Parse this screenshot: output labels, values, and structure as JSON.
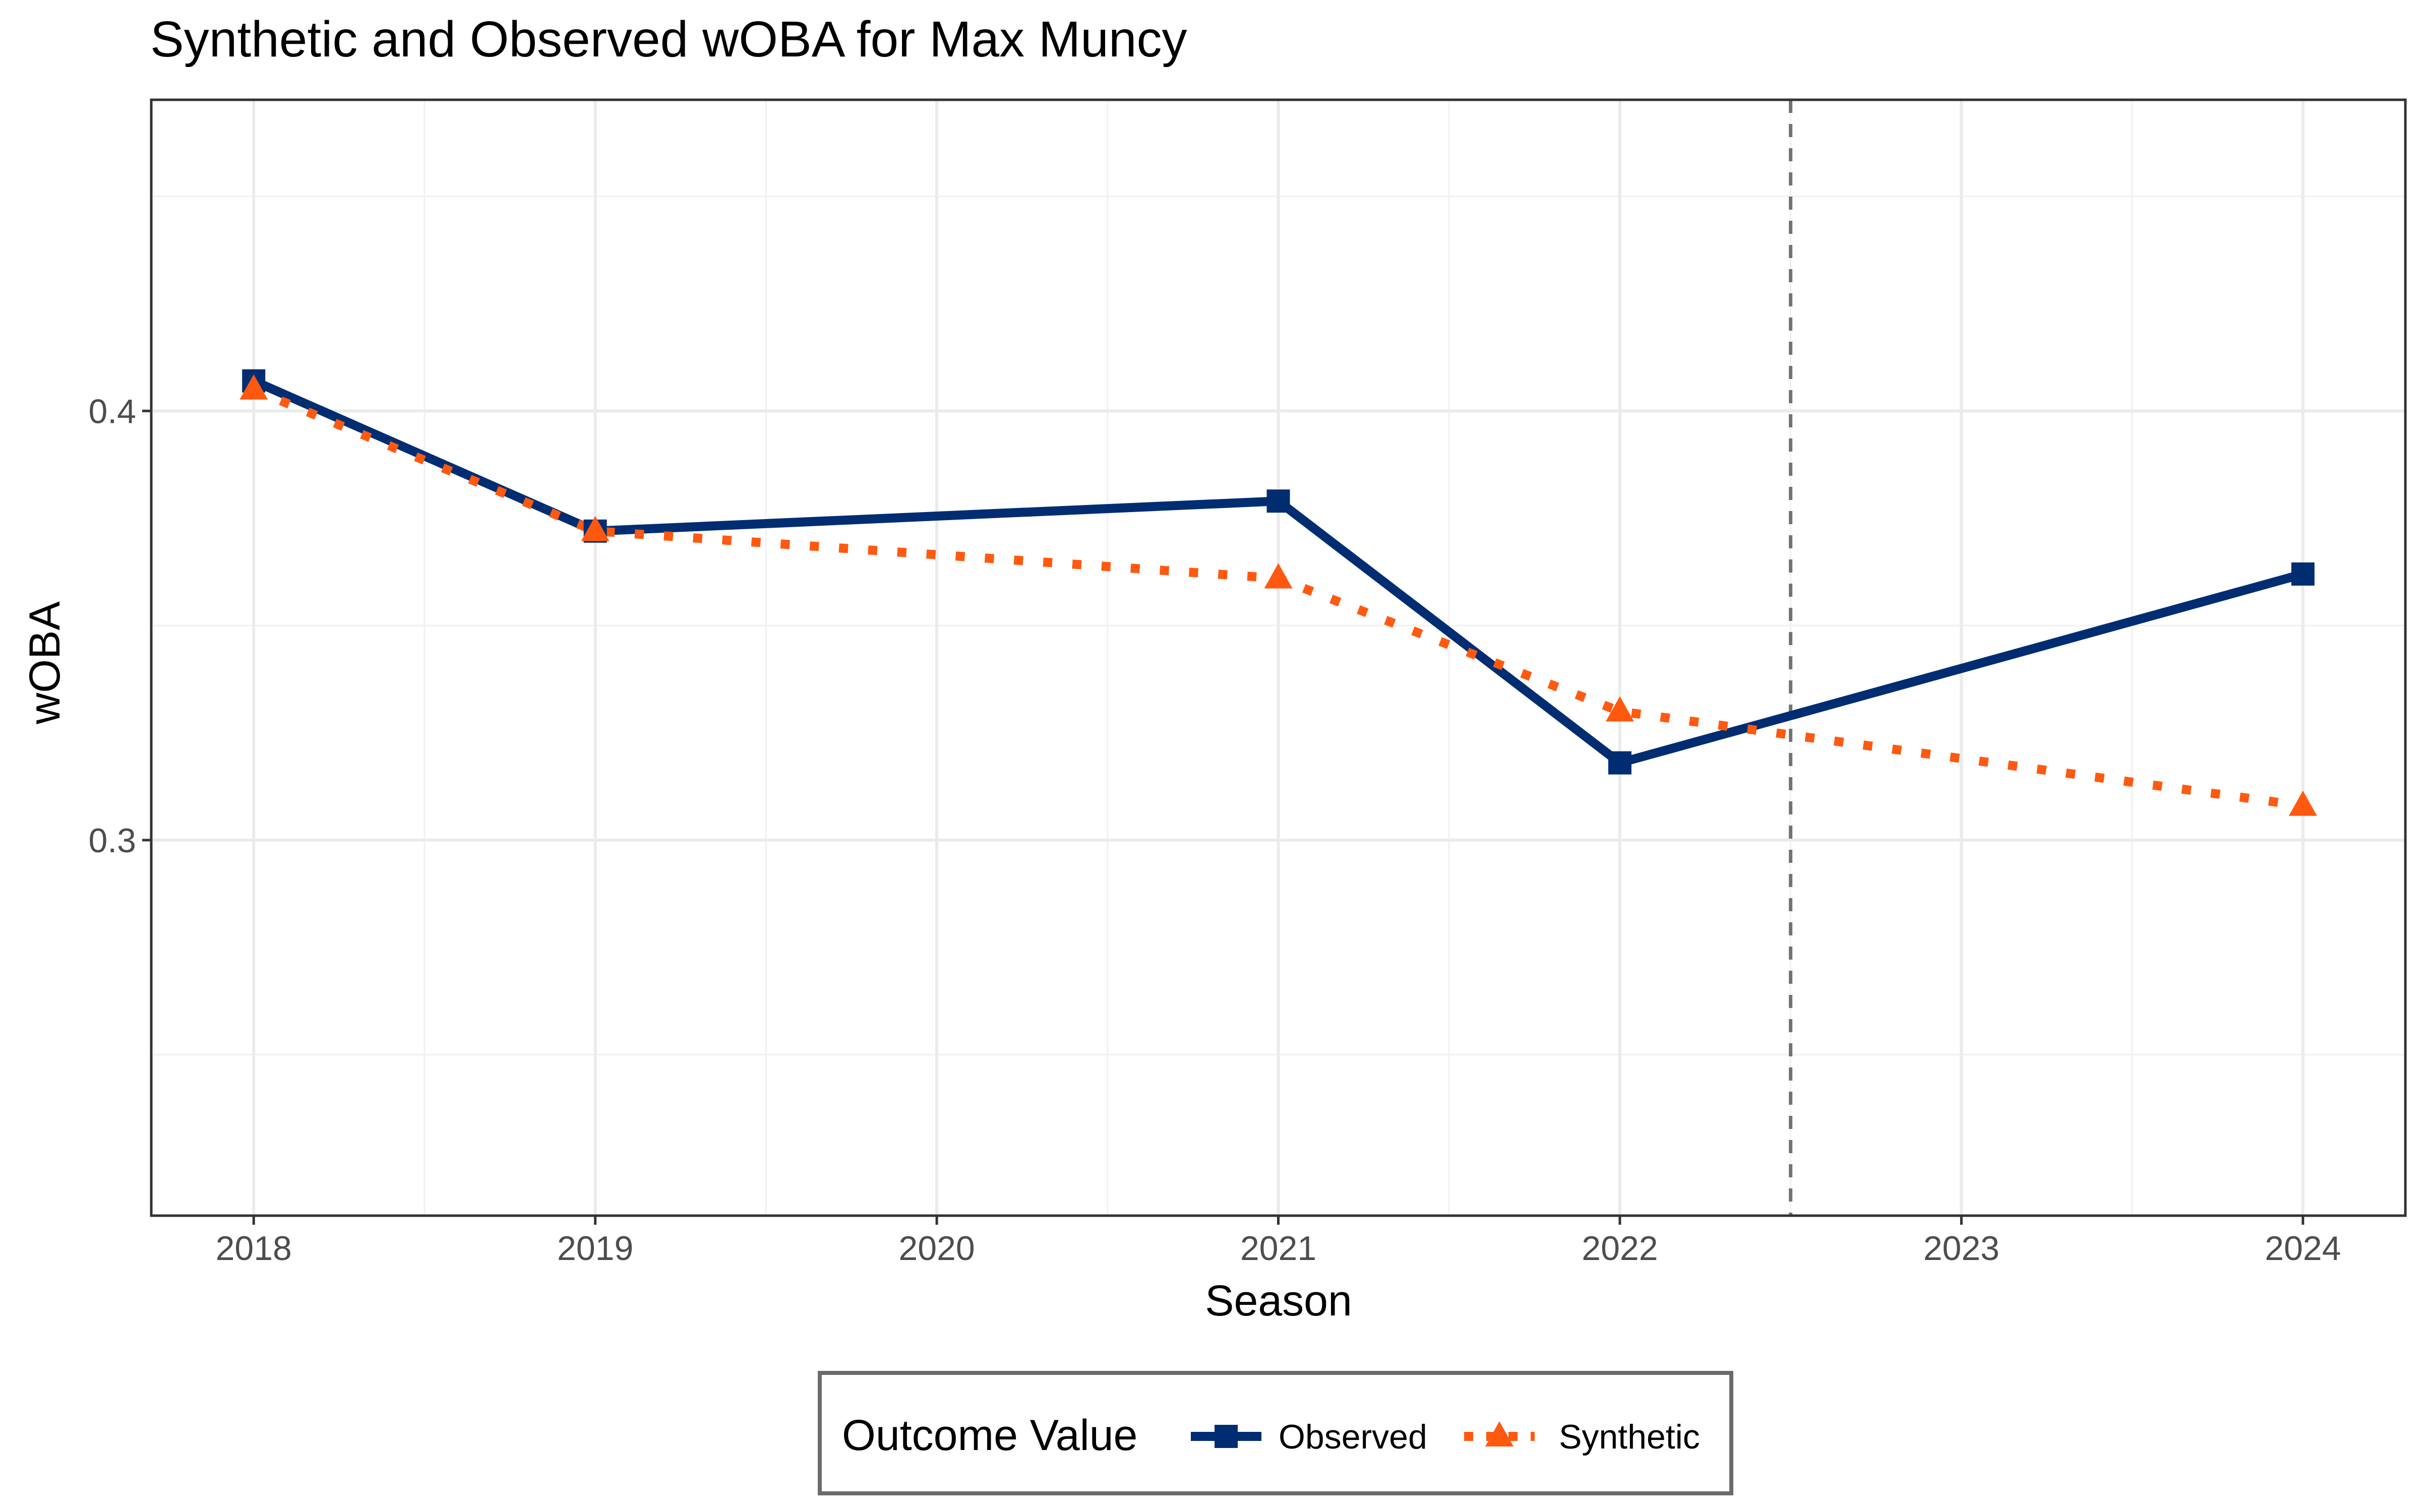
{
  "chart_data": {
    "type": "line",
    "title": "Synthetic and Observed wOBA for Max Muncy",
    "xlabel": "Season",
    "ylabel": "wOBA",
    "x_ticks": [
      "2018",
      "2019",
      "2020",
      "2021",
      "2022",
      "2023",
      "2024"
    ],
    "y_ticks": [
      "0.3",
      "0.4"
    ],
    "xlim": [
      2017.7,
      2024.3
    ],
    "ylim": [
      0.2125,
      0.4725
    ],
    "grid": true,
    "treatment_line_x": 2022.5,
    "legend": {
      "title": "Outcome Value",
      "position": "bottom"
    },
    "series": [
      {
        "name": "Observed",
        "color": "#002D72",
        "line_style": "solid",
        "marker": "square",
        "x": [
          2018,
          2019,
          2021,
          2022,
          2024
        ],
        "y": [
          0.407,
          0.372,
          0.379,
          0.318,
          0.362
        ]
      },
      {
        "name": "Synthetic",
        "color": "#FF5910",
        "line_style": "dotted",
        "marker": "triangle",
        "x": [
          2018,
          2019,
          2021,
          2022,
          2024
        ],
        "y": [
          0.405,
          0.372,
          0.361,
          0.33,
          0.308
        ]
      }
    ]
  }
}
